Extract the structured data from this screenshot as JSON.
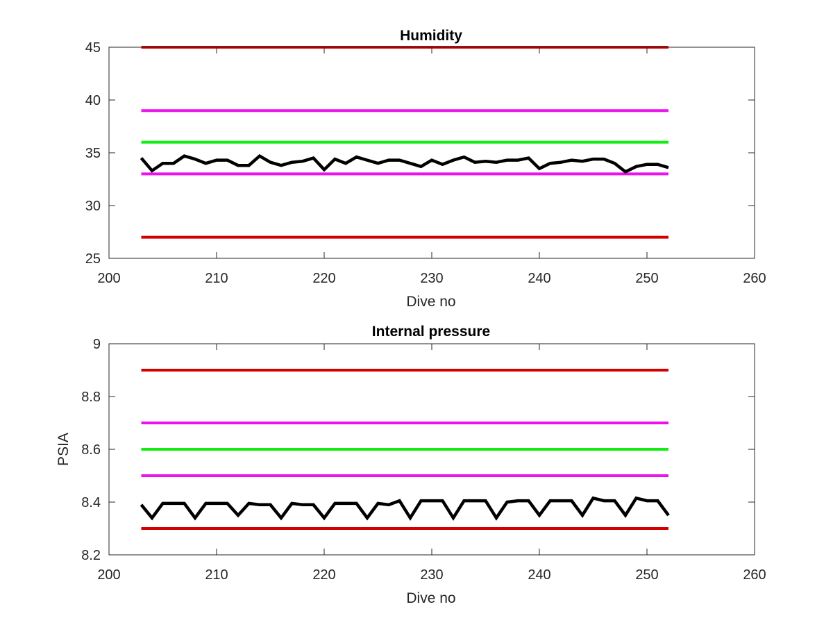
{
  "chart_data": [
    {
      "type": "line",
      "title": "Humidity",
      "xlabel": "Dive no",
      "ylabel": "",
      "xlim": [
        200,
        260
      ],
      "ylim": [
        25,
        45
      ],
      "xticks": [
        "200",
        "210",
        "220",
        "230",
        "240",
        "250",
        "260"
      ],
      "yticks": [
        "25",
        "30",
        "35",
        "40",
        "45"
      ],
      "grid": false,
      "colors": {
        "red": "#d40000",
        "magenta": "#ee11ee",
        "green": "#11ee11",
        "black": "#000000"
      },
      "thresholds": [
        {
          "y": 45,
          "color": "#d40000",
          "x": [
            203,
            252
          ]
        },
        {
          "y": 39,
          "color": "#ee11ee",
          "x": [
            203,
            252
          ]
        },
        {
          "y": 36,
          "color": "#11ee11",
          "x": [
            203,
            252
          ]
        },
        {
          "y": 33,
          "color": "#ee11ee",
          "x": [
            203,
            252
          ]
        },
        {
          "y": 27,
          "color": "#d40000",
          "x": [
            203,
            252
          ]
        }
      ],
      "series": [
        {
          "color": "#000000",
          "x": [
            203,
            204,
            205,
            206,
            207,
            208,
            209,
            210,
            211,
            212,
            213,
            214,
            215,
            216,
            217,
            218,
            219,
            220,
            221,
            222,
            223,
            224,
            225,
            226,
            227,
            228,
            229,
            230,
            231,
            232,
            233,
            234,
            235,
            236,
            237,
            238,
            239,
            240,
            241,
            242,
            243,
            244,
            245,
            246,
            247,
            248,
            249,
            250,
            251,
            252
          ],
          "values": [
            34.5,
            33.3,
            34.0,
            34.0,
            34.7,
            34.4,
            34.0,
            34.3,
            34.3,
            33.8,
            33.8,
            34.7,
            34.1,
            33.8,
            34.1,
            34.2,
            34.5,
            33.4,
            34.4,
            34.0,
            34.6,
            34.3,
            34.0,
            34.3,
            34.3,
            34.0,
            33.7,
            34.3,
            33.9,
            34.3,
            34.6,
            34.1,
            34.2,
            34.1,
            34.3,
            34.3,
            34.5,
            33.5,
            34.0,
            34.1,
            34.3,
            34.2,
            34.4,
            34.4,
            34.0,
            33.2,
            33.7,
            33.9,
            33.9,
            33.6
          ]
        }
      ]
    },
    {
      "type": "line",
      "title": "Internal pressure",
      "xlabel": "Dive no",
      "ylabel": "PSIA",
      "xlim": [
        200,
        260
      ],
      "ylim": [
        8.2,
        9
      ],
      "xticks": [
        "200",
        "210",
        "220",
        "230",
        "240",
        "250",
        "260"
      ],
      "yticks": [
        "8.2",
        "8.4",
        "8.6",
        "8.8",
        "9"
      ],
      "grid": false,
      "colors": {
        "red": "#d40000",
        "magenta": "#ee11ee",
        "green": "#11ee11",
        "black": "#000000"
      },
      "thresholds": [
        {
          "y": 8.9,
          "color": "#d40000",
          "x": [
            203,
            252
          ]
        },
        {
          "y": 8.7,
          "color": "#ee11ee",
          "x": [
            203,
            252
          ]
        },
        {
          "y": 8.6,
          "color": "#11ee11",
          "x": [
            203,
            252
          ]
        },
        {
          "y": 8.5,
          "color": "#ee11ee",
          "x": [
            203,
            252
          ]
        },
        {
          "y": 8.3,
          "color": "#d40000",
          "x": [
            203,
            252
          ]
        }
      ],
      "series": [
        {
          "color": "#000000",
          "x": [
            203,
            204,
            205,
            206,
            207,
            208,
            209,
            210,
            211,
            212,
            213,
            214,
            215,
            216,
            217,
            218,
            219,
            220,
            221,
            222,
            223,
            224,
            225,
            226,
            227,
            228,
            229,
            230,
            231,
            232,
            233,
            234,
            235,
            236,
            237,
            238,
            239,
            240,
            241,
            242,
            243,
            244,
            245,
            246,
            247,
            248,
            249,
            250,
            251,
            252
          ],
          "values": [
            8.39,
            8.34,
            8.395,
            8.395,
            8.395,
            8.34,
            8.395,
            8.395,
            8.395,
            8.35,
            8.395,
            8.39,
            8.39,
            8.34,
            8.395,
            8.39,
            8.39,
            8.34,
            8.395,
            8.395,
            8.395,
            8.34,
            8.395,
            8.39,
            8.405,
            8.34,
            8.405,
            8.405,
            8.405,
            8.34,
            8.405,
            8.405,
            8.405,
            8.34,
            8.4,
            8.405,
            8.405,
            8.35,
            8.405,
            8.405,
            8.405,
            8.35,
            8.415,
            8.405,
            8.405,
            8.35,
            8.415,
            8.405,
            8.405,
            8.35
          ]
        }
      ]
    }
  ]
}
